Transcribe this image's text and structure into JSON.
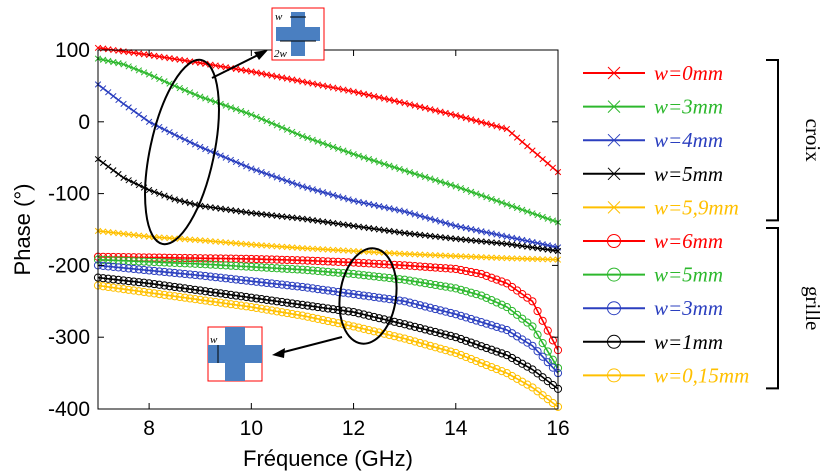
{
  "chart_data": {
    "type": "line",
    "xlabel": "Fréquence (GHz)",
    "ylabel": "Phase (°)",
    "xlim": [
      7,
      16
    ],
    "ylim": [
      -400,
      100
    ],
    "xticks": [
      "8",
      "10",
      "12",
      "14",
      "16"
    ],
    "yticks": [
      "100",
      "0",
      "-100",
      "-200",
      "-300",
      "-400"
    ],
    "legend_position": "right",
    "groups": [
      {
        "label": "croix",
        "series_range": [
          0,
          4
        ]
      },
      {
        "label": "grille",
        "series_range": [
          5,
          9
        ]
      }
    ],
    "insets": {
      "cross_w_label": "w",
      "cross_2w_label": "2w",
      "grid_w_label": "w"
    },
    "series": [
      {
        "name": "w=0mm",
        "color": "#ff0000",
        "marker": "x",
        "points": [
          [
            7,
            103
          ],
          [
            8,
            93
          ],
          [
            9,
            82
          ],
          [
            10,
            70
          ],
          [
            11,
            56
          ],
          [
            12,
            42
          ],
          [
            13,
            26
          ],
          [
            14,
            9
          ],
          [
            15,
            -10
          ],
          [
            16,
            -70
          ]
        ]
      },
      {
        "name": "w=3mm",
        "color": "#2db82d",
        "marker": "x",
        "points": [
          [
            7,
            88
          ],
          [
            7.5,
            80
          ],
          [
            8,
            66
          ],
          [
            8.5,
            50
          ],
          [
            9,
            35
          ],
          [
            10,
            10
          ],
          [
            11,
            -20
          ],
          [
            12,
            -45
          ],
          [
            13,
            -68
          ],
          [
            14,
            -90
          ],
          [
            15,
            -115
          ],
          [
            16,
            -140
          ]
        ]
      },
      {
        "name": "w=4mm",
        "color": "#2b3fbf",
        "marker": "x",
        "points": [
          [
            7,
            52
          ],
          [
            7.5,
            25
          ],
          [
            8,
            0
          ],
          [
            8.5,
            -18
          ],
          [
            9,
            -35
          ],
          [
            10,
            -65
          ],
          [
            11,
            -90
          ],
          [
            12,
            -110
          ],
          [
            13,
            -125
          ],
          [
            14,
            -145
          ],
          [
            15,
            -160
          ],
          [
            16,
            -175
          ]
        ]
      },
      {
        "name": "w=5mm",
        "color": "#000000",
        "marker": "x",
        "points": [
          [
            7,
            -52
          ],
          [
            7.5,
            -78
          ],
          [
            8,
            -95
          ],
          [
            8.5,
            -108
          ],
          [
            9,
            -117
          ],
          [
            10,
            -127
          ],
          [
            11,
            -135
          ],
          [
            12,
            -145
          ],
          [
            13,
            -155
          ],
          [
            14,
            -163
          ],
          [
            15,
            -170
          ],
          [
            16,
            -180
          ]
        ]
      },
      {
        "name": "w=5,9mm",
        "color": "#ffc000",
        "marker": "x",
        "points": [
          [
            7,
            -152
          ],
          [
            8,
            -160
          ],
          [
            9,
            -165
          ],
          [
            10,
            -171
          ],
          [
            11,
            -176
          ],
          [
            12,
            -180
          ],
          [
            13,
            -184
          ],
          [
            14,
            -187
          ],
          [
            15,
            -190
          ],
          [
            16,
            -192
          ]
        ]
      },
      {
        "name": "w=6mm",
        "color": "#ff0000",
        "marker": "o",
        "points": [
          [
            7,
            -188
          ],
          [
            8,
            -189
          ],
          [
            9,
            -190
          ],
          [
            10,
            -191
          ],
          [
            11,
            -193
          ],
          [
            12,
            -196
          ],
          [
            13,
            -200
          ],
          [
            14,
            -205
          ],
          [
            14.5,
            -212
          ],
          [
            15,
            -225
          ],
          [
            15.5,
            -250
          ],
          [
            16,
            -318
          ]
        ]
      },
      {
        "name": "w=5mm",
        "color": "#2db82d",
        "marker": "o",
        "points": [
          [
            7,
            -192
          ],
          [
            8,
            -195
          ],
          [
            9,
            -198
          ],
          [
            10,
            -202
          ],
          [
            11,
            -206
          ],
          [
            12,
            -212
          ],
          [
            13,
            -220
          ],
          [
            14,
            -232
          ],
          [
            14.5,
            -242
          ],
          [
            15,
            -258
          ],
          [
            15.5,
            -285
          ],
          [
            16,
            -343
          ]
        ]
      },
      {
        "name": "w=3mm",
        "color": "#2b3fbf",
        "marker": "o",
        "points": [
          [
            7,
            -200
          ],
          [
            8,
            -207
          ],
          [
            9,
            -214
          ],
          [
            10,
            -222
          ],
          [
            11,
            -230
          ],
          [
            12,
            -240
          ],
          [
            13,
            -250
          ],
          [
            14,
            -268
          ],
          [
            15,
            -290
          ],
          [
            15.5,
            -312
          ],
          [
            16,
            -350
          ]
        ]
      },
      {
        "name": "w=1mm",
        "color": "#000000",
        "marker": "o",
        "points": [
          [
            7,
            -217
          ],
          [
            8,
            -225
          ],
          [
            9,
            -235
          ],
          [
            10,
            -245
          ],
          [
            11,
            -255
          ],
          [
            12,
            -265
          ],
          [
            13,
            -282
          ],
          [
            14,
            -300
          ],
          [
            15,
            -325
          ],
          [
            15.5,
            -345
          ],
          [
            16,
            -372
          ]
        ]
      },
      {
        "name": "w=0,15mm",
        "color": "#ffc000",
        "marker": "o",
        "points": [
          [
            7,
            -228
          ],
          [
            8,
            -238
          ],
          [
            9,
            -248
          ],
          [
            10,
            -258
          ],
          [
            11,
            -270
          ],
          [
            12,
            -285
          ],
          [
            13,
            -302
          ],
          [
            14,
            -322
          ],
          [
            15,
            -350
          ],
          [
            15.5,
            -370
          ],
          [
            16,
            -397
          ]
        ]
      }
    ]
  }
}
